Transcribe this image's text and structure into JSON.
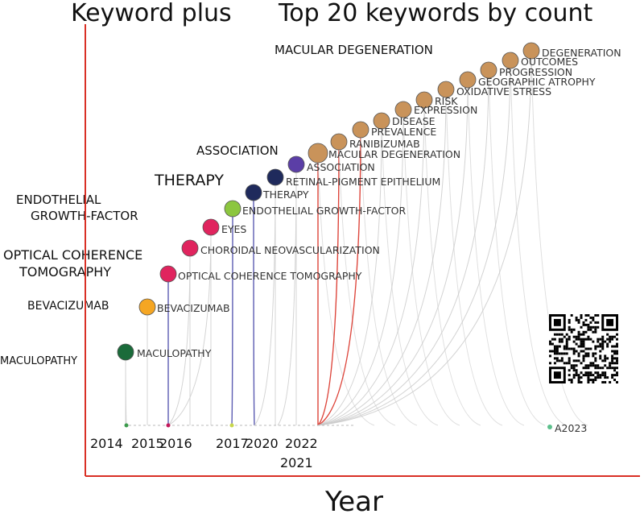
{
  "chart_data": {
    "type": "scatter",
    "title_left": "Keyword plus",
    "title_right": "Top 20 keywords by count",
    "xlabel": "Year",
    "year_labels": [
      {
        "text": "2014"
      },
      {
        "text": "2015"
      },
      {
        "text": "2016"
      },
      {
        "text": "2017"
      },
      {
        "text": "2020"
      },
      {
        "text": "2022"
      },
      {
        "text": "2021"
      }
    ],
    "legend_note": "A2023",
    "keywords": [
      {
        "rank": 1,
        "label": "MACULOPATHY",
        "year": 2014,
        "color": "#1a6b3a",
        "link_color": "#c8c8c8"
      },
      {
        "rank": 2,
        "label": "BEVACIZUMAB",
        "year": 2015,
        "color": "#f5a623",
        "link_color": "#c8c8c8"
      },
      {
        "rank": 3,
        "label": "OPTICAL COHERENCE TOMOGRAPHY",
        "year": 2016,
        "color": "#e0245e",
        "link_color": "#4a4aaa"
      },
      {
        "rank": 4,
        "label": "CHOROIDAL NEOVASCULARIZATION",
        "year": 2016,
        "color": "#e0245e",
        "link_color": "#c8c8c8"
      },
      {
        "rank": 5,
        "label": "EYES",
        "year": 2016,
        "color": "#e0245e",
        "link_color": "#c8c8c8"
      },
      {
        "rank": 6,
        "label": "ENDOTHELIAL GROWTH-FACTOR",
        "year": 2017,
        "color": "#8cc63f",
        "link_color": "#4a4aaa"
      },
      {
        "rank": 7,
        "label": "THERAPY",
        "year": 2020,
        "color": "#1f2a5c",
        "link_color": "#4a4aaa"
      },
      {
        "rank": 8,
        "label": "RETINAL-PIGMENT EPITHELIUM",
        "year": 2020,
        "color": "#1f2a5c",
        "link_color": "#c8c8c8"
      },
      {
        "rank": 9,
        "label": "ASSOCIATION",
        "year": 2021,
        "color": "#5b3ea6",
        "link_color": "#c8c8c8"
      },
      {
        "rank": 10,
        "label": "MACULAR DEGENERATION",
        "year": 2022,
        "color": "#c9935a",
        "link_color": "#d93025"
      },
      {
        "rank": 11,
        "label": "RANIBIZUMAB",
        "year": 2022,
        "color": "#c9935a",
        "link_color": "#d93025"
      },
      {
        "rank": 12,
        "label": "PREVALENCE",
        "year": 2022,
        "color": "#c9935a",
        "link_color": "#d93025"
      },
      {
        "rank": 13,
        "label": "DISEASE",
        "year": 2022,
        "color": "#c9935a",
        "link_color": "#c8c8c8"
      },
      {
        "rank": 14,
        "label": "EXPRESSION",
        "year": 2022,
        "color": "#c9935a",
        "link_color": "#c8c8c8"
      },
      {
        "rank": 15,
        "label": "RISK",
        "year": 2022,
        "color": "#c9935a",
        "link_color": "#c8c8c8"
      },
      {
        "rank": 16,
        "label": "OXIDATIVE STRESS",
        "year": 2022,
        "color": "#c9935a",
        "link_color": "#c8c8c8"
      },
      {
        "rank": 17,
        "label": "GEOGRAPHIC ATROPHY",
        "year": 2022,
        "color": "#c9935a",
        "link_color": "#c8c8c8"
      },
      {
        "rank": 18,
        "label": "PROGRESSION",
        "year": 2022,
        "color": "#c9935a",
        "link_color": "#c8c8c8"
      },
      {
        "rank": 19,
        "label": "OUTCOMES",
        "year": 2022,
        "color": "#c9935a",
        "link_color": "#c8c8c8"
      },
      {
        "rank": 20,
        "label": "DEGENERATION",
        "year": 2022,
        "color": "#c9935a",
        "link_color": "#c8c8c8"
      }
    ],
    "year_headline_labels": [
      {
        "text": "MACULOPATHY"
      },
      {
        "text": "BEVACIZUMAB"
      },
      {
        "text": "OPTICAL COHERENCE"
      },
      {
        "text": "TOMOGRAPHY"
      },
      {
        "text": "ENDOTHELIAL"
      },
      {
        "text": "GROWTH-FACTOR"
      },
      {
        "text": "THERAPY"
      },
      {
        "text": "ASSOCIATION"
      },
      {
        "text": "MACULAR DEGENERATION"
      }
    ],
    "axis_color": "#d93025",
    "grid": false
  }
}
